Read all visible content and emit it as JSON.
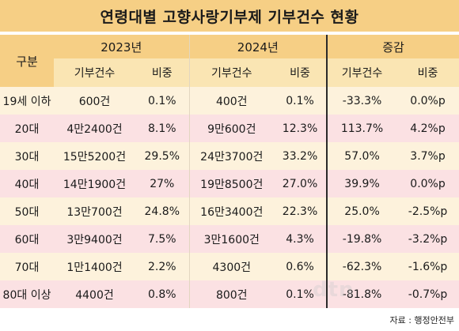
{
  "title": "연령대별 고향사랑기부제 기부건수 현황",
  "header": {
    "gubun": "구분",
    "years": [
      "2023년",
      "2024년",
      "증감"
    ],
    "sub": [
      "기부건수",
      "비중",
      "기부건수",
      "비중",
      "기부건수",
      "비중"
    ]
  },
  "rows": [
    {
      "age": "19세 이하",
      "c2023": "600건",
      "s2023": "0.1%",
      "c2024": "400건",
      "s2024": "0.1%",
      "cdiff": "-33.3%",
      "sdiff": "0.0%p"
    },
    {
      "age": "20대",
      "c2023": "4만2400건",
      "s2023": "8.1%",
      "c2024": "9만600건",
      "s2024": "12.3%",
      "cdiff": "113.7%",
      "sdiff": "4.2%p"
    },
    {
      "age": "30대",
      "c2023": "15만5200건",
      "s2023": "29.5%",
      "c2024": "24만3700건",
      "s2024": "33.2%",
      "cdiff": "57.0%",
      "sdiff": "3.7%p"
    },
    {
      "age": "40대",
      "c2023": "14만1900건",
      "s2023": "27%",
      "c2024": "19만8500건",
      "s2024": "27.0%",
      "cdiff": "39.9%",
      "sdiff": "0.0%p"
    },
    {
      "age": "50대",
      "c2023": "13만700건",
      "s2023": "24.8%",
      "c2024": "16만3400건",
      "s2024": "22.3%",
      "cdiff": "25.0%",
      "sdiff": "-2.5%p"
    },
    {
      "age": "60대",
      "c2023": "3만9400건",
      "s2023": "7.5%",
      "c2024": "3만1600건",
      "s2024": "4.3%",
      "cdiff": "-19.8%",
      "sdiff": "-3.2%p"
    },
    {
      "age": "70대",
      "c2023": "1만1400건",
      "s2023": "2.2%",
      "c2024": "4300건",
      "s2024": "0.6%",
      "cdiff": "-62.3%",
      "sdiff": "-1.6%p"
    },
    {
      "age": "80대 이상",
      "c2023": "4400건",
      "s2023": "0.8%",
      "c2024": "800건",
      "s2024": "0.1%",
      "cdiff": "-81.8%",
      "sdiff": "-0.7%p"
    }
  ],
  "source": "자료 : 행정안전부",
  "watermark": "dtn"
}
